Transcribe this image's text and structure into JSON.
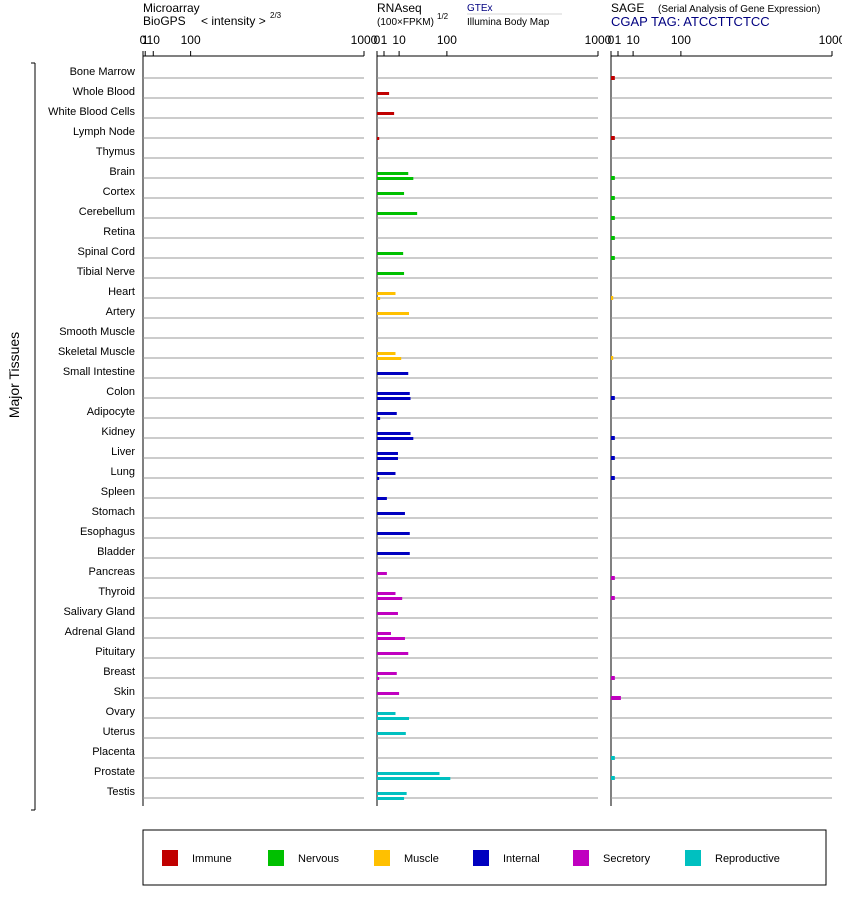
{
  "panels": {
    "microarray": {
      "title_line1": "Microarray",
      "title_line2": "BioGPS",
      "scale_label": "< intensity >",
      "scale_exp": "2/3"
    },
    "rnaseq": {
      "title_line1": "RNAseq",
      "title_line2": "(100×FPKM)",
      "scale_exp": "1/2",
      "source_1": "GTEx",
      "source_2": "Illumina Body Map"
    },
    "sage": {
      "title_line1": "SAGE",
      "subtitle": "(Serial Analysis of Gene Expression)",
      "tag_line": "CGAP TAG: ATCCTTCTCC"
    }
  },
  "axis_ticks": [
    "0",
    "1",
    "10",
    "100",
    "1000"
  ],
  "group_label": "Major Tissues",
  "legend": [
    {
      "name": "Immune",
      "color": "#c00000"
    },
    {
      "name": "Nervous",
      "color": "#00c000"
    },
    {
      "name": "Muscle",
      "color": "#ffc000"
    },
    {
      "name": "Internal",
      "color": "#0000c0"
    },
    {
      "name": "Secretory",
      "color": "#c000c0"
    },
    {
      "name": "Reproductive",
      "color": "#00c0c0"
    }
  ],
  "chart_data": {
    "type": "bar",
    "x_scale": "power (microarray: intensity^(2/3); RNAseq: sqrt)",
    "xlim": [
      0,
      1000
    ],
    "tissues": [
      {
        "name": "Bone Marrow",
        "group": "Immune",
        "microarray": null,
        "gtex": null,
        "bodymap": null,
        "sage": 0.3
      },
      {
        "name": "Whole Blood",
        "group": "Immune",
        "microarray": null,
        "gtex": 3,
        "bodymap": null,
        "sage": null
      },
      {
        "name": "White Blood Cells",
        "group": "Immune",
        "microarray": null,
        "gtex": 6,
        "bodymap": null,
        "sage": null
      },
      {
        "name": "Lymph Node",
        "group": "Immune",
        "microarray": null,
        "gtex": null,
        "bodymap": 0.1,
        "sage": 0.3
      },
      {
        "name": "Thymus",
        "group": "Immune",
        "microarray": null,
        "gtex": null,
        "bodymap": null,
        "sage": null
      },
      {
        "name": "Brain",
        "group": "Nervous",
        "microarray": null,
        "gtex": 20,
        "bodymap": 27,
        "sage": 0.3
      },
      {
        "name": "Cortex",
        "group": "Nervous",
        "microarray": null,
        "gtex": 15,
        "bodymap": null,
        "sage": 0.3
      },
      {
        "name": "Cerebellum",
        "group": "Nervous",
        "microarray": null,
        "gtex": 33,
        "bodymap": null,
        "sage": 0.3
      },
      {
        "name": "Retina",
        "group": "Nervous",
        "microarray": null,
        "gtex": null,
        "bodymap": null,
        "sage": 0.3
      },
      {
        "name": "Spinal Cord",
        "group": "Nervous",
        "microarray": null,
        "gtex": 14,
        "bodymap": null,
        "sage": 0.3
      },
      {
        "name": "Tibial Nerve",
        "group": "Nervous",
        "microarray": null,
        "gtex": 15,
        "bodymap": null,
        "sage": null
      },
      {
        "name": "Heart",
        "group": "Muscle",
        "microarray": null,
        "gtex": 7,
        "bodymap": 0.2,
        "sage": 0.1
      },
      {
        "name": "Artery",
        "group": "Muscle",
        "microarray": null,
        "gtex": 21,
        "bodymap": null,
        "sage": null
      },
      {
        "name": "Smooth Muscle",
        "group": "Muscle",
        "microarray": null,
        "gtex": null,
        "bodymap": null,
        "sage": null
      },
      {
        "name": "Skeletal Muscle",
        "group": "Muscle",
        "microarray": null,
        "gtex": 7,
        "bodymap": 12,
        "sage": 0.1
      },
      {
        "name": "Small Intestine",
        "group": "Internal",
        "microarray": null,
        "gtex": 20,
        "bodymap": null,
        "sage": null
      },
      {
        "name": "Colon",
        "group": "Internal",
        "microarray": null,
        "gtex": 22,
        "bodymap": 23,
        "sage": 0.3
      },
      {
        "name": "Adipocyte",
        "group": "Internal",
        "microarray": null,
        "gtex": 8,
        "bodymap": 0.2,
        "sage": null
      },
      {
        "name": "Kidney",
        "group": "Internal",
        "microarray": null,
        "gtex": 23,
        "bodymap": 27,
        "sage": 0.3
      },
      {
        "name": "Liver",
        "group": "Internal",
        "microarray": null,
        "gtex": 9,
        "bodymap": 9,
        "sage": 0.3
      },
      {
        "name": "Lung",
        "group": "Internal",
        "microarray": null,
        "gtex": 7,
        "bodymap": 0.1,
        "sage": 0.3
      },
      {
        "name": "Spleen",
        "group": "Internal",
        "microarray": null,
        "gtex": null,
        "bodymap": 2,
        "sage": null
      },
      {
        "name": "Stomach",
        "group": "Internal",
        "microarray": null,
        "gtex": 16,
        "bodymap": null,
        "sage": null
      },
      {
        "name": "Esophagus",
        "group": "Internal",
        "microarray": null,
        "gtex": 22,
        "bodymap": null,
        "sage": null
      },
      {
        "name": "Bladder",
        "group": "Internal",
        "microarray": null,
        "gtex": 22,
        "bodymap": null,
        "sage": null
      },
      {
        "name": "Pancreas",
        "group": "Secretory",
        "microarray": null,
        "gtex": 2,
        "bodymap": null,
        "sage": 0.3
      },
      {
        "name": "Thyroid",
        "group": "Secretory",
        "microarray": null,
        "gtex": 7,
        "bodymap": 13,
        "sage": 0.3
      },
      {
        "name": "Salivary Gland",
        "group": "Secretory",
        "microarray": null,
        "gtex": 9,
        "bodymap": null,
        "sage": null
      },
      {
        "name": "Adrenal Gland",
        "group": "Secretory",
        "microarray": null,
        "gtex": 4,
        "bodymap": 16,
        "sage": null
      },
      {
        "name": "Pituitary",
        "group": "Secretory",
        "microarray": null,
        "gtex": 20,
        "bodymap": null,
        "sage": null
      },
      {
        "name": "Breast",
        "group": "Secretory",
        "microarray": null,
        "gtex": 8,
        "bodymap": 0.1,
        "sage": 0.3
      },
      {
        "name": "Skin",
        "group": "Secretory",
        "microarray": null,
        "gtex": 10,
        "bodymap": null,
        "sage": 2
      },
      {
        "name": "Ovary",
        "group": "Reproductive",
        "microarray": null,
        "gtex": 7,
        "bodymap": 21,
        "sage": null
      },
      {
        "name": "Uterus",
        "group": "Reproductive",
        "microarray": null,
        "gtex": 17,
        "bodymap": null,
        "sage": null
      },
      {
        "name": "Placenta",
        "group": "Reproductive",
        "microarray": null,
        "gtex": null,
        "bodymap": null,
        "sage": 0.3
      },
      {
        "name": "Prostate",
        "group": "Reproductive",
        "microarray": null,
        "gtex": 80,
        "bodymap": 110,
        "sage": 0.3
      },
      {
        "name": "Testis",
        "group": "Reproductive",
        "microarray": null,
        "gtex": 18,
        "bodymap": 15,
        "sage": null
      }
    ]
  }
}
